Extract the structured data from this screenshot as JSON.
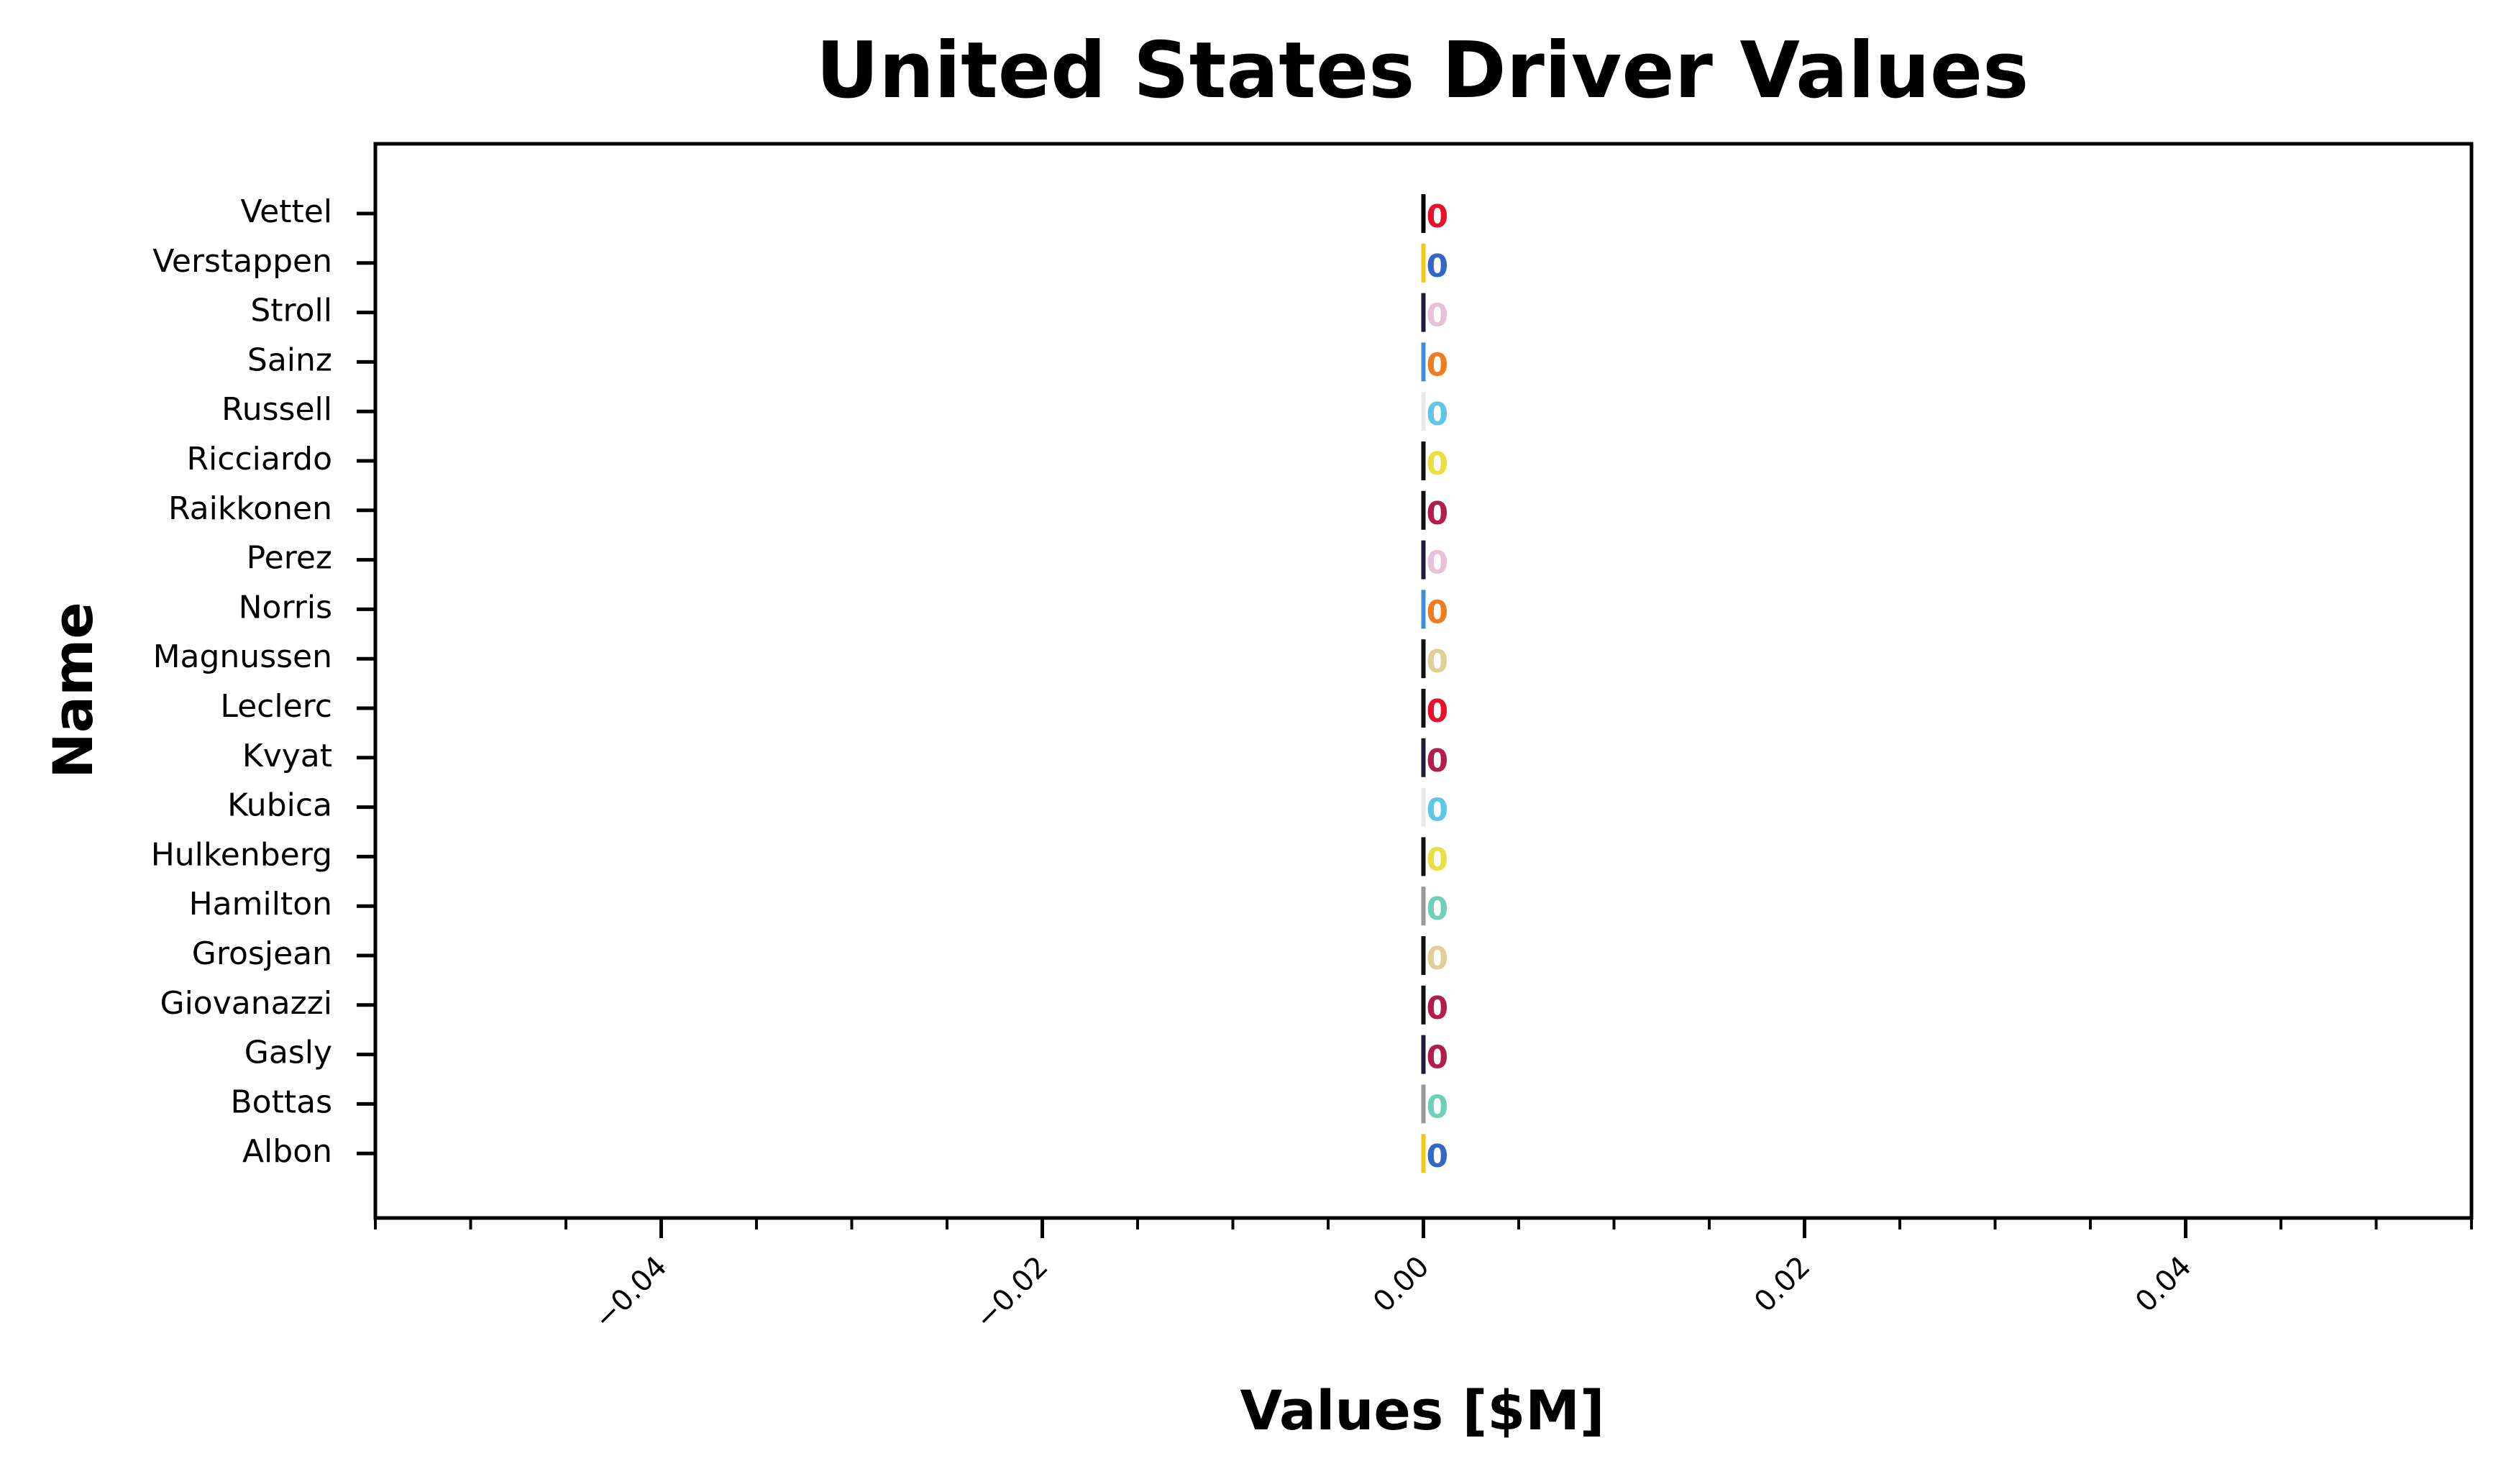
{
  "chart_data": {
    "type": "bar",
    "orientation": "horizontal",
    "title": "United States Driver Values",
    "xlabel": "Values [$M]",
    "ylabel": "Name",
    "xlim": [
      -0.055,
      0.055
    ],
    "xticks": [
      -0.04,
      -0.02,
      0.0,
      0.02,
      0.04
    ],
    "xtick_labels": [
      "−0.04",
      "−0.02",
      "0.00",
      "0.02",
      "0.04"
    ],
    "grid": false,
    "categories": [
      "Vettel",
      "Verstappen",
      "Stroll",
      "Sainz",
      "Russell",
      "Ricciardo",
      "Raikkonen",
      "Perez",
      "Norris",
      "Magnussen",
      "Leclerc",
      "Kvyat",
      "Kubica",
      "Hulkenberg",
      "Hamilton",
      "Grosjean",
      "Giovanazzi",
      "Gasly",
      "Bottas",
      "Albon"
    ],
    "values": [
      0,
      0,
      0,
      0,
      0,
      0,
      0,
      0,
      0,
      0,
      0,
      0,
      0,
      0,
      0,
      0,
      0,
      0,
      0,
      0
    ],
    "data_labels": [
      "0",
      "0",
      "0",
      "0",
      "0",
      "0",
      "0",
      "0",
      "0",
      "0",
      "0",
      "0",
      "0",
      "0",
      "0",
      "0",
      "0",
      "0",
      "0",
      "0"
    ],
    "bar_colors": [
      "#000000",
      "#F5C518",
      "#1E1B3A",
      "#3B8FD9",
      "#E8E8E8",
      "#111111",
      "#111111",
      "#1E1B3A",
      "#3B8FD9",
      "#111111",
      "#111111",
      "#1E1B3A",
      "#E8E8E8",
      "#111111",
      "#9A9A9A",
      "#111111",
      "#111111",
      "#1E1B3A",
      "#9A9A9A",
      "#F5C518"
    ],
    "label_colors": [
      "#E8102A",
      "#3467C2",
      "#E8C0D8",
      "#F07C22",
      "#60C6E8",
      "#E8E040",
      "#B01E4A",
      "#E8C0D8",
      "#F07C22",
      "#E0D098",
      "#E8102A",
      "#B01E4A",
      "#60C6E8",
      "#E8E040",
      "#6ED0B8",
      "#E0D098",
      "#B01E4A",
      "#B01E4A",
      "#6ED0B8",
      "#3467C2"
    ]
  }
}
